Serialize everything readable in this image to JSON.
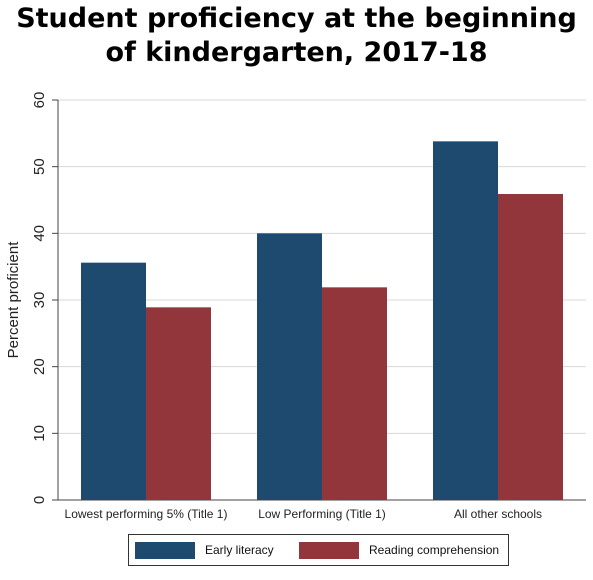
{
  "chart_data": {
    "type": "bar",
    "title_lines": [
      "Student proficiency at the beginning",
      "of kindergarten, 2017-18"
    ],
    "categories": [
      "Lowest performing 5% (Title 1)",
      "Low Performing (Title 1)",
      "All other schools"
    ],
    "series": [
      {
        "name": "Early literacy",
        "values": [
          35.6,
          40.0,
          53.8
        ],
        "color": "#1f4a70"
      },
      {
        "name": "Reading comprehension",
        "values": [
          28.9,
          31.9,
          45.9
        ],
        "color": "#93363b"
      }
    ],
    "ylabel": "Percent proficient",
    "xlabel": "",
    "ylim": [
      0,
      60
    ],
    "yticks": [
      0,
      10,
      20,
      30,
      40,
      50,
      60
    ],
    "grid": true,
    "legend_position": "bottom"
  }
}
